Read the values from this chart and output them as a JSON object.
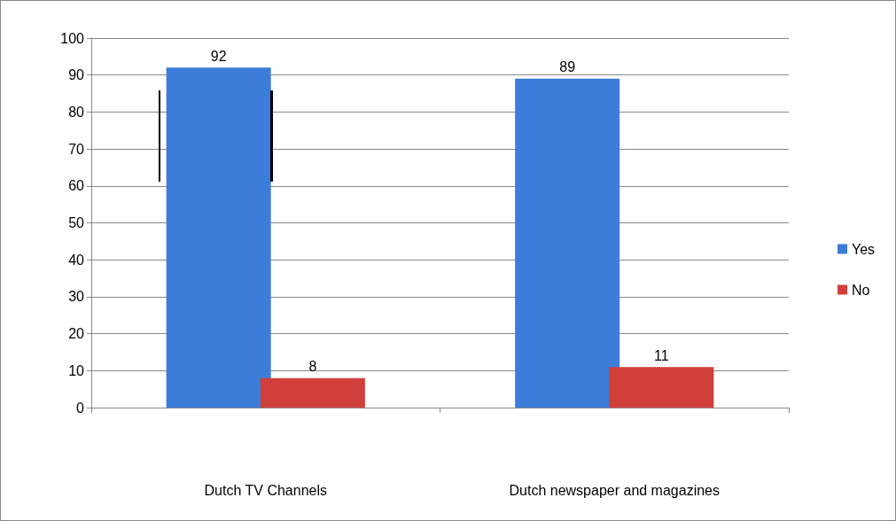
{
  "chart_data": {
    "type": "bar",
    "categories": [
      "Dutch TV Channels",
      "Dutch newspaper and magazines"
    ],
    "series": [
      {
        "name": "Yes",
        "color": "#3b7dd8",
        "values": [
          92,
          89
        ]
      },
      {
        "name": "No",
        "color": "#d13f3b",
        "values": [
          8,
          11
        ]
      }
    ],
    "ylim": [
      0,
      100
    ],
    "yticks": [
      0,
      10,
      20,
      30,
      40,
      50,
      60,
      70,
      80,
      90,
      100
    ],
    "grid": "y",
    "legend": "right",
    "data_labels": true
  }
}
